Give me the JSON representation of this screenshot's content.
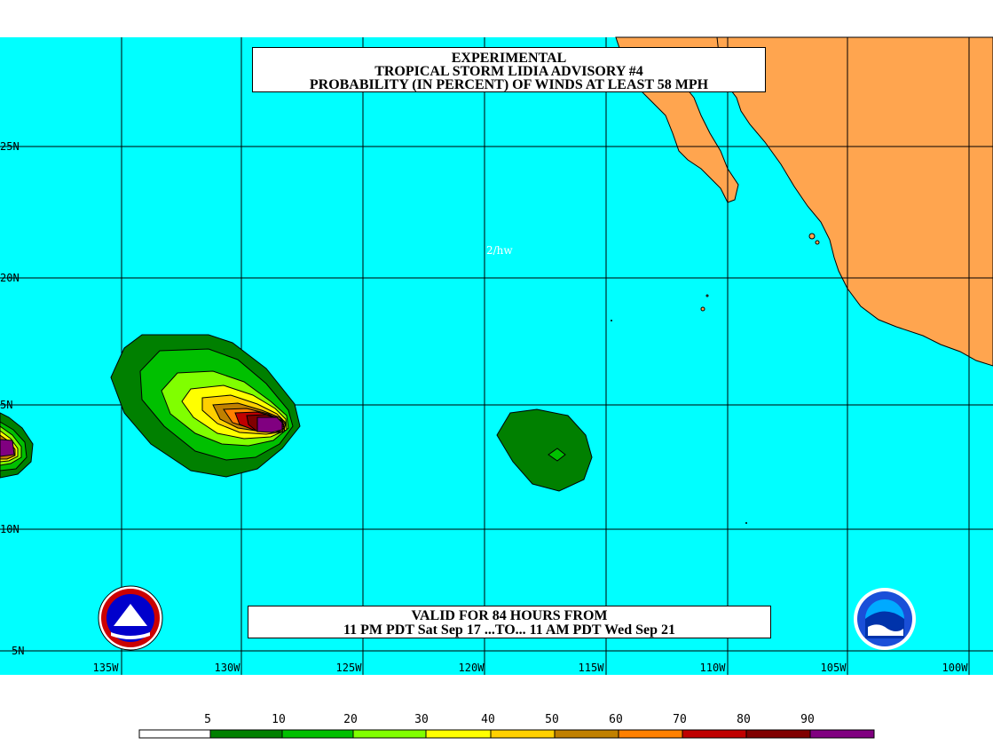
{
  "title": {
    "line1": "EXPERIMENTAL",
    "line2": "TROPICAL STORM LIDIA ADVISORY #4",
    "line3": "PROBABILITY (IN PERCENT) OF WINDS AT LEAST 58 MPH"
  },
  "valid": {
    "line1": "VALID FOR 84 HOURS FROM",
    "line2": "11 PM PDT Sat Sep 17 ...TO... 11 AM PDT Wed Sep 21"
  },
  "credit": "2/hw",
  "latitude_labels": [
    "25N",
    "20N",
    "5N",
    "10N",
    "5N"
  ],
  "longitude_labels": [
    "135W",
    "130W",
    "125W",
    "120W",
    "115W",
    "110W",
    "105W",
    "100W"
  ],
  "legend": {
    "thresholds": [
      "5",
      "10",
      "20",
      "30",
      "40",
      "50",
      "60",
      "70",
      "80",
      "90"
    ],
    "colors": [
      "#ffffff",
      "#008000",
      "#00c000",
      "#80ff00",
      "#ffff00",
      "#ffd000",
      "#c08000",
      "#ff8000",
      "#c00000",
      "#800000",
      "#800080"
    ]
  },
  "colors": {
    "ocean": "#00ffff",
    "land": "#ffa54f",
    "grid": "#000000"
  },
  "logos": {
    "left": "NWS seal",
    "right": "NOAA"
  }
}
